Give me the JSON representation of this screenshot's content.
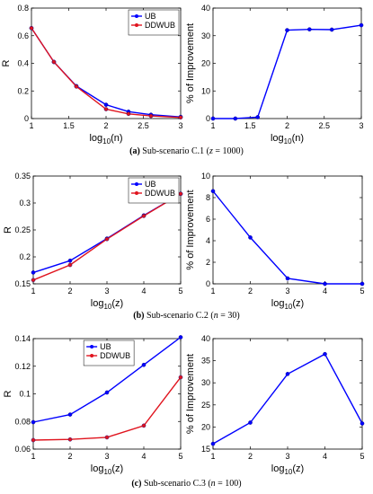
{
  "chart_data": [
    {
      "type": "line",
      "panel": "a-left",
      "x": [
        1,
        1.301,
        1.602,
        2,
        2.301,
        2.602,
        3
      ],
      "xlabel": "log10(n)",
      "ylabel": "R",
      "xlim": [
        1,
        3
      ],
      "ylim": [
        0,
        0.8
      ],
      "xticks": [
        1,
        1.5,
        2,
        2.5,
        3
      ],
      "yticks": [
        0,
        0.2,
        0.4,
        0.6,
        0.8
      ],
      "legend": "top-right",
      "series": [
        {
          "name": "UB",
          "color": "#0000ff",
          "values": [
            0.655,
            0.41,
            0.235,
            0.1,
            0.05,
            0.028,
            0.012
          ]
        },
        {
          "name": "DDWUB",
          "color": "#e0141e",
          "values": [
            0.655,
            0.41,
            0.232,
            0.068,
            0.034,
            0.019,
            0.008
          ]
        }
      ]
    },
    {
      "type": "line",
      "panel": "a-right",
      "x": [
        1,
        1.301,
        1.602,
        2,
        2.301,
        2.602,
        3
      ],
      "xlabel": "log10(n)",
      "ylabel": "% of Improvement",
      "xlim": [
        1,
        3
      ],
      "ylim": [
        0,
        40
      ],
      "xticks": [
        1,
        1.5,
        2,
        2.5,
        3
      ],
      "yticks": [
        0,
        10,
        20,
        30,
        40
      ],
      "series": [
        {
          "name": "",
          "color": "#0000ff",
          "values": [
            0,
            0,
            0.5,
            32,
            32.3,
            32.2,
            33.8
          ]
        }
      ]
    },
    {
      "type": "line",
      "panel": "b-left",
      "x": [
        1,
        2,
        3,
        4,
        5
      ],
      "xlabel": "log10(z)",
      "ylabel": "R",
      "xlim": [
        1,
        5
      ],
      "ylim": [
        0.15,
        0.35
      ],
      "xticks": [
        1,
        2,
        3,
        4,
        5
      ],
      "yticks": [
        0.15,
        0.2,
        0.25,
        0.3,
        0.35
      ],
      "legend": "top-right",
      "series": [
        {
          "name": "UB",
          "color": "#0000ff",
          "values": [
            0.171,
            0.193,
            0.234,
            0.277,
            0.317
          ]
        },
        {
          "name": "DDWUB",
          "color": "#e0141e",
          "values": [
            0.157,
            0.185,
            0.233,
            0.276,
            0.317
          ]
        }
      ]
    },
    {
      "type": "line",
      "panel": "b-right",
      "x": [
        1,
        2,
        3,
        4,
        5
      ],
      "xlabel": "log10(z)",
      "ylabel": "% of Improvement",
      "xlim": [
        1,
        5
      ],
      "ylim": [
        0,
        10
      ],
      "xticks": [
        1,
        2,
        3,
        4,
        5
      ],
      "yticks": [
        0,
        2,
        4,
        6,
        8,
        10
      ],
      "series": [
        {
          "name": "",
          "color": "#0000ff",
          "values": [
            8.6,
            4.3,
            0.5,
            0,
            0
          ]
        }
      ]
    },
    {
      "type": "line",
      "panel": "c-left",
      "x": [
        1,
        2,
        3,
        4,
        5
      ],
      "xlabel": "log10(z)",
      "ylabel": "R",
      "xlim": [
        1,
        5
      ],
      "ylim": [
        0.06,
        0.14
      ],
      "xticks": [
        1,
        2,
        3,
        4,
        5
      ],
      "yticks": [
        0.06,
        0.08,
        0.1,
        0.12,
        0.14
      ],
      "legend": "top-left",
      "series": [
        {
          "name": "UB",
          "color": "#0000ff",
          "values": [
            0.0795,
            0.085,
            0.101,
            0.121,
            0.141
          ]
        },
        {
          "name": "DDWUB",
          "color": "#e0141e",
          "values": [
            0.0665,
            0.067,
            0.0685,
            0.077,
            0.112
          ]
        }
      ]
    },
    {
      "type": "line",
      "panel": "c-right",
      "x": [
        1,
        2,
        3,
        4,
        5
      ],
      "xlabel": "log10(z)",
      "ylabel": "% of Improvement",
      "xlim": [
        1,
        5
      ],
      "ylim": [
        15,
        40
      ],
      "xticks": [
        1,
        2,
        3,
        4,
        5
      ],
      "yticks": [
        15,
        20,
        25,
        30,
        35,
        40
      ],
      "series": [
        {
          "name": "",
          "color": "#0000ff",
          "values": [
            16.2,
            21,
            32,
            36.5,
            20.8
          ]
        }
      ]
    }
  ],
  "captions": {
    "a": {
      "tag": "(a)",
      "text": "Sub-scenario C.1 (",
      "var": "z",
      "rest": " = 1000)"
    },
    "b": {
      "tag": "(b)",
      "text": "Sub-scenario C.2 (",
      "var": "n",
      "rest": " = 30)"
    },
    "c": {
      "tag": "(c)",
      "text": "Sub-scenario C.3 (",
      "var": "n",
      "rest": " = 100)"
    }
  }
}
